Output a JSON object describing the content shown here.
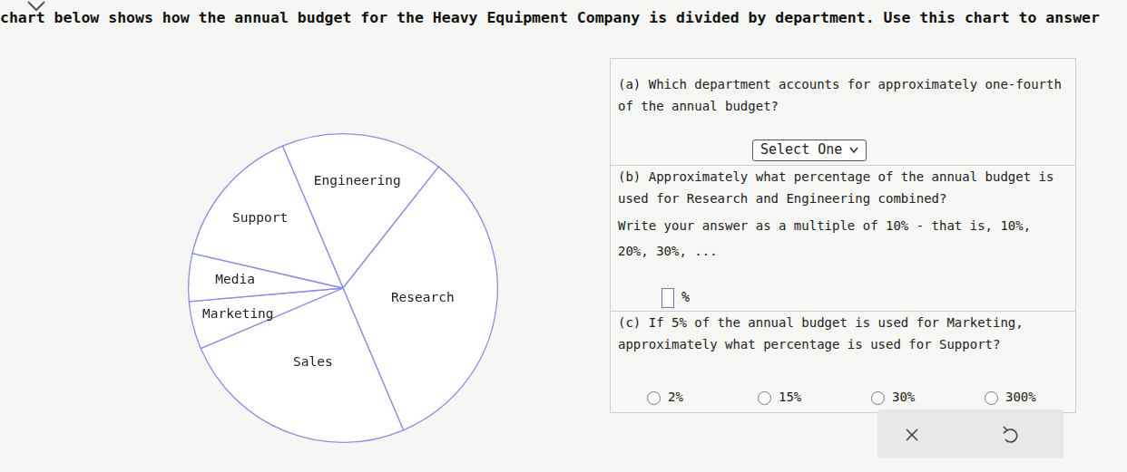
{
  "header": {
    "text": "chart below shows how the annual budget for the Heavy Equipment Company is divided by department. Use this chart to answer"
  },
  "chart_data": {
    "type": "pie",
    "categories": [
      "Engineering",
      "Research",
      "Sales",
      "Marketing",
      "Media",
      "Support"
    ],
    "values": [
      17,
      33,
      25,
      5,
      5,
      15
    ],
    "color": "#ffffff"
  },
  "questions": [
    {
      "text": "(a) Which department accounts for approximately one-fourth of the annual budget?",
      "control": "Select One"
    },
    {
      "text": "(b) Approximately what percentage of the annual budget is used for Research and Engineering combined?",
      "instructions": "Write your answer as a multiple of 10% - that is, 10%, 20%, 30%, ...",
      "unit": "%"
    },
    {
      "text": "(c) If 5% of the annual budget is used for Marketing, approximately what percentage is used for Support?",
      "options": [
        "2%",
        "15%",
        "30%",
        "300%"
      ]
    }
  ]
}
